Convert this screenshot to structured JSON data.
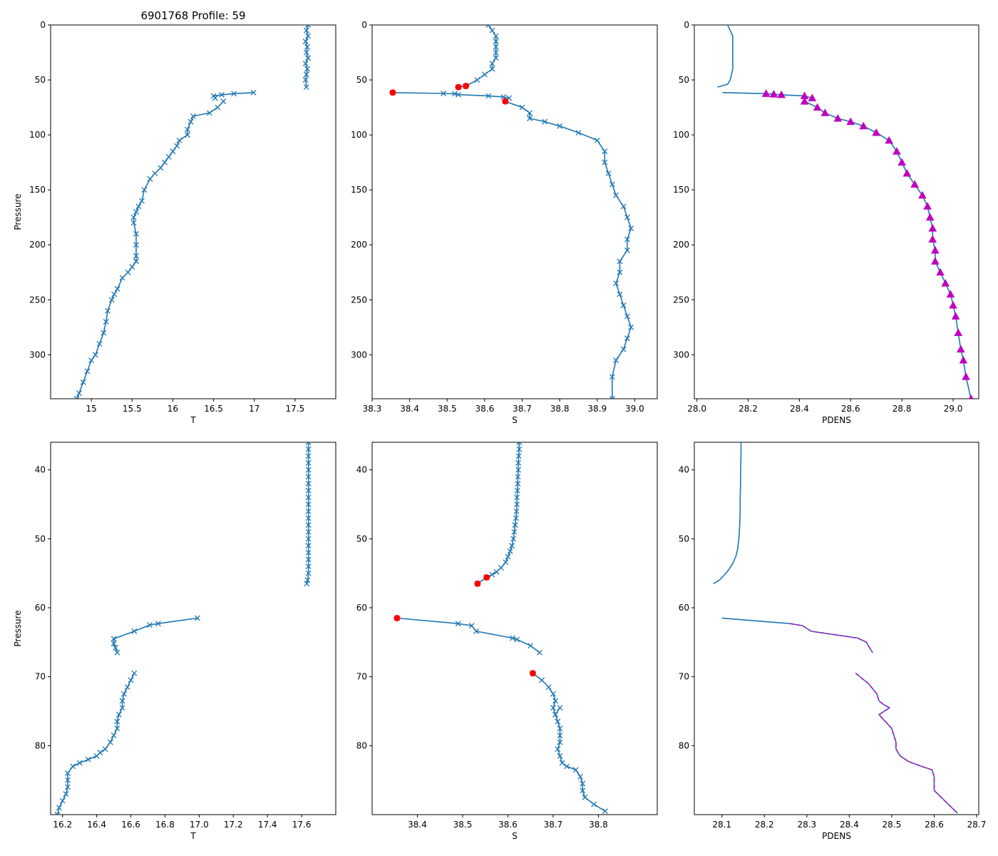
{
  "figure_title": "6901768 Profile: 59",
  "colors": {
    "line": "#1f77b4",
    "qc_flag": "#ff0000",
    "density_marker": "#bf00bf",
    "axis": "#000000"
  },
  "chart_data": [
    {
      "type": "line",
      "variable": "T",
      "xlabel": "T",
      "ylabel": "Pressure",
      "title": "6901768 Profile: 59",
      "xlim": [
        14.5,
        18.0
      ],
      "ylim": [
        340,
        0
      ],
      "xticks": [
        15.0,
        15.5,
        16.0,
        16.5,
        17.0,
        17.5
      ],
      "yticks": [
        0,
        50,
        100,
        150,
        200,
        250,
        300
      ],
      "marker": "x",
      "segments": [
        {
          "x": [
            17.66,
            17.64,
            17.66,
            17.63,
            17.65,
            17.64,
            17.66,
            17.63,
            17.65,
            17.64,
            17.63,
            17.64
          ],
          "y": [
            0,
            5,
            10,
            15,
            20,
            25,
            30,
            35,
            40,
            45,
            50,
            56.5
          ]
        },
        {
          "x": [
            16.99,
            16.75,
            16.6,
            16.5,
            16.52
          ],
          "y": [
            61.5,
            62.5,
            63.5,
            64.5,
            66.5
          ]
        },
        {
          "x": [
            16.62,
            16.55,
            16.45,
            16.25,
            16.22,
            16.18,
            16.18,
            16.08,
            16.05,
            16.0,
            15.95,
            15.9,
            15.85,
            15.78,
            15.72,
            15.65,
            15.62,
            15.58,
            15.55,
            15.52,
            15.52,
            15.55,
            15.55,
            15.55,
            15.55,
            15.5,
            15.45,
            15.38,
            15.32,
            15.28,
            15.25,
            15.2,
            15.18,
            15.15,
            15.1,
            15.05,
            15.0,
            14.95,
            14.9,
            14.85,
            14.82
          ],
          "y": [
            69.5,
            75,
            80,
            83,
            88,
            95,
            100,
            105,
            110,
            115,
            120,
            125,
            130,
            135,
            140,
            150,
            160,
            165,
            170,
            175,
            180,
            190,
            200,
            210,
            215,
            220,
            225,
            230,
            240,
            245,
            250,
            260,
            270,
            280,
            290,
            300,
            305,
            315,
            325,
            335,
            340
          ]
        }
      ]
    },
    {
      "type": "line",
      "variable": "S",
      "xlabel": "S",
      "ylabel": "",
      "xlim": [
        38.3,
        39.06
      ],
      "ylim": [
        340,
        0
      ],
      "xticks": [
        38.3,
        38.4,
        38.5,
        38.6,
        38.7,
        38.8,
        38.9,
        39.0
      ],
      "yticks": [
        0,
        50,
        100,
        150,
        200,
        250,
        300
      ],
      "marker": "x",
      "segments": [
        {
          "x": [
            38.61,
            38.62,
            38.63,
            38.63,
            38.63,
            38.63,
            38.63,
            38.62,
            38.62,
            38.6,
            38.58,
            38.55,
            38.53
          ],
          "y": [
            0,
            5,
            10,
            15,
            20,
            25,
            30,
            35,
            40,
            45,
            50,
            55.5,
            56.5
          ]
        },
        {
          "x": [
            38.355,
            38.49,
            38.52,
            38.53,
            38.61,
            38.65,
            38.665
          ],
          "y": [
            61.5,
            62.3,
            62.6,
            63.4,
            64.5,
            65.5,
            66.5
          ]
        },
        {
          "x": [
            38.655,
            38.7,
            38.72,
            38.72,
            38.76,
            38.8,
            38.85,
            38.9,
            38.92,
            38.92,
            38.93,
            38.94,
            38.95,
            38.97,
            38.98,
            38.99,
            38.98,
            38.98,
            38.96,
            38.96,
            38.95,
            38.96,
            38.97,
            38.98,
            38.99,
            38.98,
            38.97,
            38.95,
            38.94,
            38.94
          ],
          "y": [
            69.5,
            75,
            80,
            85,
            88,
            92,
            98,
            105,
            115,
            125,
            135,
            145,
            155,
            165,
            175,
            185,
            195,
            205,
            215,
            225,
            235,
            245,
            255,
            265,
            275,
            285,
            295,
            305,
            320,
            340
          ]
        }
      ],
      "qc_points": {
        "x": [
          38.53,
          38.55,
          38.355,
          38.655
        ],
        "y": [
          56.5,
          55.5,
          61.5,
          69.5
        ]
      }
    },
    {
      "type": "line",
      "variable": "PDENS",
      "xlabel": "PDENS",
      "ylabel": "",
      "xlim": [
        27.99,
        29.1
      ],
      "ylim": [
        340,
        0
      ],
      "xticks": [
        28.0,
        28.2,
        28.4,
        28.6,
        28.8,
        29.0
      ],
      "yticks": [
        0,
        50,
        100,
        150,
        200,
        250,
        300
      ],
      "marker": "^",
      "segments": [
        {
          "x": [
            28.12,
            28.13,
            28.14,
            28.14,
            28.14,
            28.14,
            28.14,
            28.135,
            28.13,
            28.12,
            28.08
          ],
          "y": [
            0,
            5,
            10,
            15,
            20,
            30,
            40,
            45,
            50,
            54,
            56.5
          ]
        },
        {
          "x": [
            28.1,
            28.27,
            28.3,
            28.33,
            28.42,
            28.45
          ],
          "y": [
            61.5,
            62.5,
            63,
            63.5,
            64.5,
            66.5
          ]
        },
        {
          "x": [
            28.42,
            28.47,
            28.5,
            28.55,
            28.6,
            28.65,
            28.7,
            28.75,
            28.78,
            28.8,
            28.82,
            28.85,
            28.88,
            28.9,
            28.91,
            28.92,
            28.92,
            28.93,
            28.93,
            28.95,
            28.97,
            28.99,
            29.0,
            29.01,
            29.02,
            29.03,
            29.04,
            29.05,
            29.07
          ],
          "y": [
            69.5,
            75,
            80,
            85,
            88,
            92,
            98,
            105,
            115,
            125,
            135,
            145,
            155,
            165,
            175,
            185,
            195,
            205,
            215,
            225,
            235,
            245,
            255,
            265,
            280,
            295,
            305,
            320,
            340
          ]
        }
      ],
      "marker_points": {
        "x": [
          28.27,
          28.3,
          28.33,
          28.42,
          28.45,
          28.42,
          28.47,
          28.5,
          28.55,
          28.6,
          28.65,
          28.7,
          28.75,
          28.78,
          28.8,
          28.82,
          28.85,
          28.88,
          28.9,
          28.91,
          28.92,
          28.92,
          28.93,
          28.93,
          28.95,
          28.97,
          28.99,
          29.0,
          29.01,
          29.02,
          29.03,
          29.04,
          29.05,
          29.07
        ],
        "y": [
          62.5,
          63,
          63.5,
          64.5,
          66.5,
          69.5,
          75,
          80,
          85,
          88,
          92,
          98,
          105,
          115,
          125,
          135,
          145,
          155,
          165,
          175,
          185,
          195,
          205,
          215,
          225,
          235,
          245,
          255,
          265,
          280,
          295,
          305,
          320,
          340
        ]
      }
    },
    {
      "type": "line",
      "variable": "T",
      "xlabel": "T",
      "ylabel": "Pressure",
      "xlim": [
        16.13,
        17.8
      ],
      "ylim": [
        90,
        36
      ],
      "xticks": [
        16.2,
        16.4,
        16.6,
        16.8,
        17.0,
        17.2,
        17.4,
        17.6
      ],
      "yticks": [
        40,
        50,
        60,
        70,
        80
      ],
      "marker": "x",
      "segments": [
        {
          "x": [
            17.64,
            17.64,
            17.64,
            17.64,
            17.64,
            17.64,
            17.64,
            17.64,
            17.64,
            17.64,
            17.64,
            17.64,
            17.64,
            17.64,
            17.64,
            17.64,
            17.64,
            17.64,
            17.64,
            17.64,
            17.635,
            17.63
          ],
          "y": [
            36,
            37,
            38,
            39,
            40,
            41,
            42,
            43,
            44,
            45,
            46,
            47,
            48,
            49,
            50,
            51,
            52,
            53,
            54,
            55,
            56,
            56.5
          ]
        },
        {
          "x": [
            16.99,
            16.76,
            16.71,
            16.62,
            16.5,
            16.5,
            16.51,
            16.52
          ],
          "y": [
            61.5,
            62.3,
            62.5,
            63.4,
            64.5,
            65.2,
            65.8,
            66.5
          ]
        },
        {
          "x": [
            16.62,
            16.6,
            16.58,
            16.56,
            16.55,
            16.55,
            16.53,
            16.52,
            16.52,
            16.5,
            16.48,
            16.45,
            16.42,
            16.4,
            16.35,
            16.3,
            16.26,
            16.23,
            16.23,
            16.23,
            16.22,
            16.2,
            16.18,
            16.17
          ],
          "y": [
            69.5,
            70.5,
            71.5,
            72.5,
            73.5,
            74.5,
            75.5,
            76.5,
            77.5,
            78.5,
            79.5,
            80.5,
            81,
            81.5,
            82,
            82.5,
            83,
            84,
            85,
            86,
            87,
            88,
            89,
            90
          ]
        }
      ]
    },
    {
      "type": "line",
      "variable": "S",
      "xlabel": "S",
      "ylabel": "",
      "xlim": [
        38.3,
        38.93
      ],
      "ylim": [
        90,
        36
      ],
      "xticks": [
        38.4,
        38.5,
        38.6,
        38.7,
        38.8
      ],
      "yticks": [
        40,
        50,
        60,
        70,
        80
      ],
      "marker": "x",
      "segments": [
        {
          "x": [
            38.625,
            38.625,
            38.624,
            38.623,
            38.623,
            38.622,
            38.622,
            38.621,
            38.62,
            38.62,
            38.619,
            38.618,
            38.616,
            38.614,
            38.612,
            38.609,
            38.605,
            38.6,
            38.595,
            38.585,
            38.575,
            38.565,
            38.553,
            38.533
          ],
          "y": [
            36,
            37,
            38,
            39,
            40,
            41,
            42,
            43,
            44,
            45,
            46,
            47,
            48,
            49,
            50,
            51,
            51.8,
            52.6,
            53.4,
            54.2,
            54.8,
            55.2,
            55.6,
            56.5
          ]
        },
        {
          "x": [
            38.355,
            38.49,
            38.52,
            38.53,
            38.61,
            38.62,
            38.65,
            38.67
          ],
          "y": [
            61.5,
            62.3,
            62.6,
            63.4,
            64.4,
            64.6,
            65.5,
            66.5
          ]
        },
        {
          "x": [
            38.655,
            38.675,
            38.69,
            38.7,
            38.705,
            38.7,
            38.705,
            38.715,
            38.705,
            38.71,
            38.715,
            38.715,
            38.715,
            38.71,
            38.715,
            38.72,
            38.73,
            38.75,
            38.76,
            38.765,
            38.765,
            38.77,
            38.79,
            38.815
          ],
          "y": [
            69.5,
            70.5,
            71.5,
            72.5,
            73.5,
            74.5,
            75.5,
            74.5,
            75.5,
            76.5,
            77.5,
            78.5,
            79.5,
            80.5,
            81.5,
            82.5,
            83,
            83.5,
            84.5,
            85.5,
            86.5,
            87.5,
            88.5,
            89.5
          ]
        }
      ],
      "qc_points": {
        "x": [
          38.533,
          38.553,
          38.355,
          38.655
        ],
        "y": [
          56.5,
          55.6,
          61.5,
          69.5
        ]
      }
    },
    {
      "type": "line",
      "variable": "PDENS",
      "xlabel": "PDENS",
      "ylabel": "",
      "xlim": [
        28.035,
        28.705
      ],
      "ylim": [
        90,
        36
      ],
      "xticks": [
        28.1,
        28.2,
        28.3,
        28.4,
        28.5,
        28.6,
        28.7
      ],
      "yticks": [
        40,
        50,
        60,
        70,
        80
      ],
      "marker": "",
      "segments": [
        {
          "x": [
            28.145,
            28.145,
            28.144,
            28.144,
            28.143,
            28.143,
            28.142,
            28.14,
            28.137,
            28.133,
            28.126,
            28.116,
            28.105,
            28.094,
            28.08
          ],
          "y": [
            36,
            38,
            40,
            42,
            44,
            46,
            48,
            50,
            51.5,
            52.5,
            53.5,
            54.5,
            55.3,
            56,
            56.5
          ]
        },
        {
          "x": [
            28.1,
            28.26,
            28.29,
            28.31,
            28.42,
            28.44,
            28.455
          ],
          "y": [
            61.5,
            62.3,
            62.6,
            63.4,
            64.4,
            65,
            66.5
          ]
        },
        {
          "x": [
            28.415,
            28.445,
            28.465,
            28.47,
            28.47,
            28.48,
            28.495,
            28.47,
            28.5,
            28.505,
            28.51,
            28.51,
            28.52,
            28.54,
            28.57,
            28.595,
            28.6,
            28.6,
            28.6,
            28.625,
            28.655
          ],
          "y": [
            69.5,
            71,
            72.5,
            73.5,
            73.5,
            74,
            74.5,
            75.5,
            77.5,
            78.5,
            79.5,
            80.5,
            81.5,
            82.3,
            83,
            83.5,
            84.5,
            85.5,
            86.5,
            88,
            89.8
          ]
        }
      ],
      "overlay_segments": [
        {
          "x": [
            28.26,
            28.29,
            28.31,
            28.42,
            28.44,
            28.455
          ],
          "y": [
            62.3,
            62.6,
            63.4,
            64.4,
            65,
            66.5
          ]
        },
        {
          "x": [
            28.415,
            28.445,
            28.465,
            28.47,
            28.47,
            28.48,
            28.495,
            28.47,
            28.5,
            28.505,
            28.51,
            28.51,
            28.52,
            28.54,
            28.57,
            28.595,
            28.6,
            28.6,
            28.6,
            28.625,
            28.655
          ],
          "y": [
            69.5,
            71,
            72.5,
            73.5,
            73.5,
            74,
            74.5,
            75.5,
            77.5,
            78.5,
            79.5,
            80.5,
            81.5,
            82.3,
            83,
            83.5,
            84.5,
            85.5,
            86.5,
            88,
            89.8
          ]
        }
      ]
    }
  ]
}
